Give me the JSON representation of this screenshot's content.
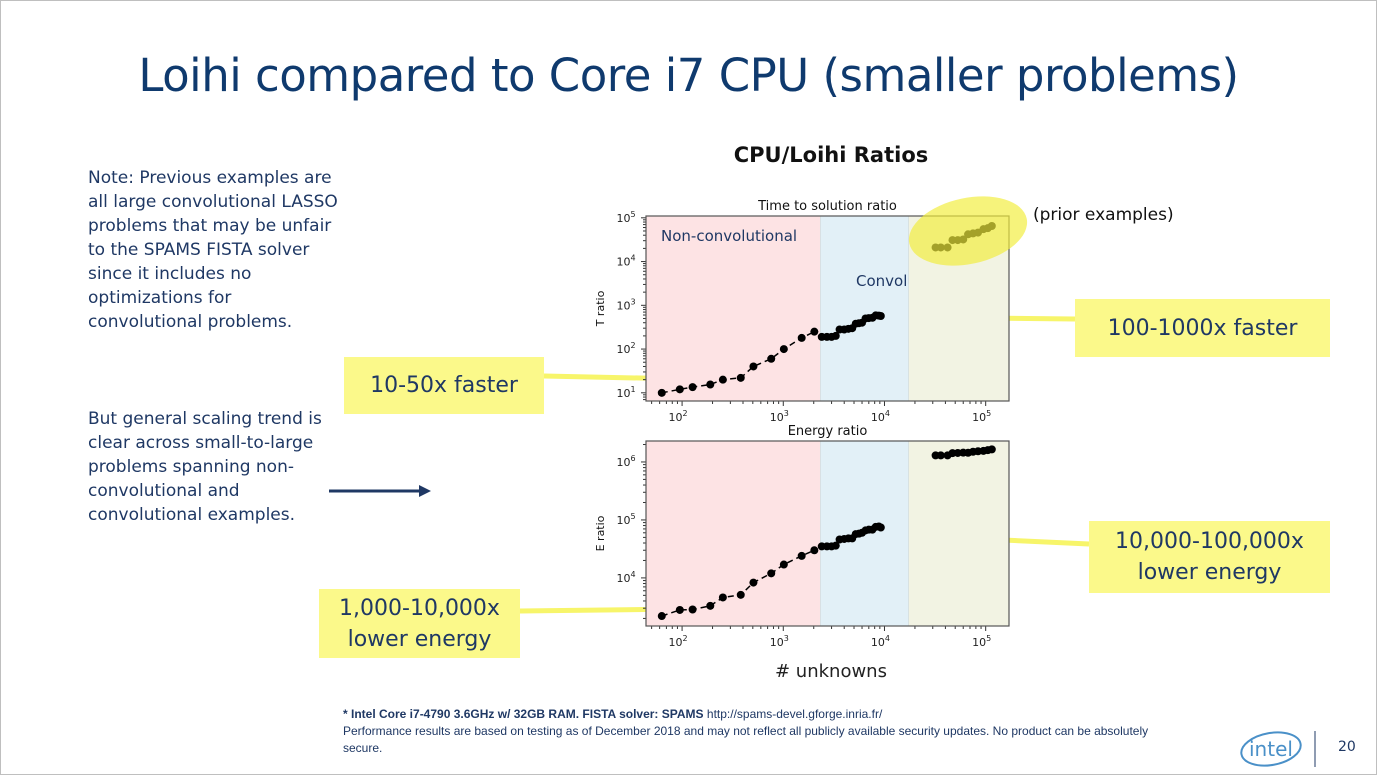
{
  "title": "Loihi compared to Core i7 CPU (smaller problems)",
  "notes": {
    "note1": "Note: Previous examples are all large convolutional LASSO problems that may be unfair to the SPAMS FISTA solver since it includes no optimizations for convolutional problems.",
    "note2": "But general scaling trend is clear across small-to-large problems spanning non-convolutional and convolutional examples."
  },
  "callouts": {
    "time_small": "10-50x faster",
    "time_large": "100-1000x faster",
    "energy_small": "1,000-10,000x lower energy",
    "energy_large": "10,000-100,000x lower energy",
    "prior": "(prior examples)"
  },
  "chart_title": "CPU/Loihi Ratios",
  "xlabel": "# unknowns",
  "footer": {
    "line1_bold": "* Intel Core i7-4790 3.6GHz w/ 32GB RAM. FISTA solver: ",
    "line1_bold2": "SPAMS",
    "line1_url": " http://spams-devel.gforge.inria.fr/",
    "line2": "Performance results are based on testing as of December 2018 and may not reflect all publicly available security updates. No product can be absolutely secure."
  },
  "logo": "intel",
  "page_number": "20",
  "colors": {
    "title": "#0f3a6e",
    "callout": "#fbf98a",
    "non_convolutional_region": "#fde3e4",
    "convolutional_region": "#e2f0f7",
    "prior_region": "#f2f3e3",
    "arrow": "#1f3864"
  },
  "chart_data": [
    {
      "type": "scatter",
      "title": "Time to solution ratio",
      "ylabel": "T ratio",
      "xscale": "log",
      "yscale": "log",
      "xlim": [
        44,
        170000
      ],
      "ylim": [
        6.5,
        110000
      ],
      "xticks": [
        100,
        1000,
        10000,
        100000
      ],
      "yticks": [
        10,
        100,
        1000,
        10000,
        100000
      ],
      "regions": [
        {
          "label": "Non-convolutional",
          "x": [
            44,
            2330
          ]
        },
        {
          "label": "Convolutional",
          "x": [
            2330,
            17300
          ]
        },
        {
          "label": "",
          "x": [
            17300,
            170000
          ]
        }
      ],
      "series": [
        {
          "style": "dashed-line-markers",
          "x": [
            63,
            95,
            127,
            190,
            253,
            380,
            507,
            760,
            1013,
            1520,
            2027
          ],
          "y": [
            10,
            12,
            13.5,
            15.5,
            20,
            22,
            40,
            60,
            100,
            180,
            250
          ]
        },
        {
          "style": "markers",
          "x": [
            2400,
            2700,
            3000,
            3300,
            3600,
            4000,
            4400,
            4800,
            5200,
            5600,
            6000,
            6500,
            7000,
            7600,
            8200,
            8800,
            9200
          ],
          "y": [
            190,
            190,
            190,
            200,
            280,
            280,
            290,
            300,
            380,
            390,
            400,
            500,
            510,
            520,
            590,
            580,
            570
          ]
        },
        {
          "style": "markers",
          "x": [
            32000,
            36000,
            42000,
            47000,
            53000,
            60000,
            67000,
            75000,
            84000,
            95000,
            105000,
            115000
          ],
          "y": [
            21000,
            21000,
            21000,
            31000,
            31000,
            32000,
            42000,
            44000,
            46000,
            55000,
            58000,
            65000
          ]
        }
      ]
    },
    {
      "type": "scatter",
      "title": "Energy ratio",
      "ylabel": "E ratio",
      "xscale": "log",
      "yscale": "log",
      "xlim": [
        44,
        170000
      ],
      "ylim": [
        1480,
        2300000
      ],
      "xticks": [
        100,
        1000,
        10000,
        100000
      ],
      "yticks": [
        10000,
        100000,
        1000000
      ],
      "regions": [
        {
          "label": "",
          "x": [
            44,
            2330
          ]
        },
        {
          "label": "",
          "x": [
            2330,
            17300
          ]
        },
        {
          "label": "",
          "x": [
            17300,
            170000
          ]
        }
      ],
      "series": [
        {
          "style": "dashed-line-markers",
          "x": [
            63,
            95,
            127,
            190,
            253,
            380,
            507,
            760,
            1013,
            1520,
            2027
          ],
          "y": [
            2200,
            2800,
            2850,
            3300,
            4600,
            5100,
            8300,
            12000,
            17000,
            24000,
            30000
          ]
        },
        {
          "style": "markers",
          "x": [
            2400,
            2700,
            3000,
            3300,
            3600,
            4000,
            4400,
            4800,
            5200,
            5600,
            6000,
            6500,
            7000,
            7600,
            8200,
            8800,
            9200
          ],
          "y": [
            35000,
            35000,
            35000,
            36000,
            46000,
            47000,
            48000,
            48000,
            57000,
            58000,
            60000,
            66000,
            68000,
            68000,
            76000,
            77000,
            74000
          ]
        },
        {
          "style": "markers",
          "x": [
            32000,
            36000,
            42000,
            47000,
            53000,
            60000,
            67000,
            75000,
            84000,
            95000,
            105000,
            115000
          ],
          "y": [
            1300000,
            1300000,
            1300000,
            1420000,
            1430000,
            1450000,
            1440000,
            1500000,
            1530000,
            1550000,
            1600000,
            1650000
          ]
        }
      ]
    }
  ]
}
